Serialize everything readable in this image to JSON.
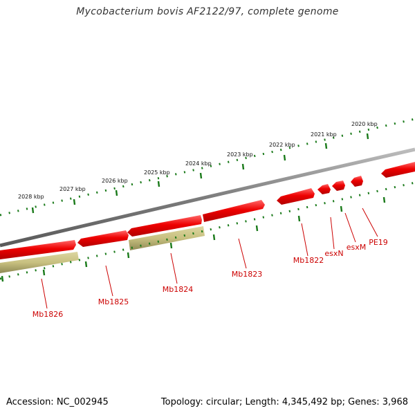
{
  "title": "Mycobacterium bovis AF2122/97, complete genome",
  "footer": {
    "accession": "Accession: NC_002945",
    "summary": "Topology: circular; Length: 4,345,492 bp; Genes: 3,968"
  },
  "colors": {
    "backbone": "#8a8a8a",
    "gene": "#ee0000",
    "gene_highlight": "#ff6a6a",
    "gene_shadow": "#b00000",
    "cds": "#c8c080",
    "cds_shadow": "#8f8a55",
    "ticks": "#1a7a1a",
    "label": "#cc0000",
    "kbp_text": "#111111"
  },
  "ruler": {
    "kbp_labels": [
      "2028 kbp",
      "2027 kbp",
      "2026 kbp",
      "2025 kbp",
      "2024 kbp",
      "2023 kbp",
      "2022 kbp",
      "2021 kbp",
      "2020 kbp"
    ]
  },
  "genes": {
    "labels": [
      "Mb1826",
      "Mb1825",
      "Mb1824",
      "Mb1823",
      "Mb1822",
      "esxN",
      "esxM",
      "PE19"
    ]
  }
}
